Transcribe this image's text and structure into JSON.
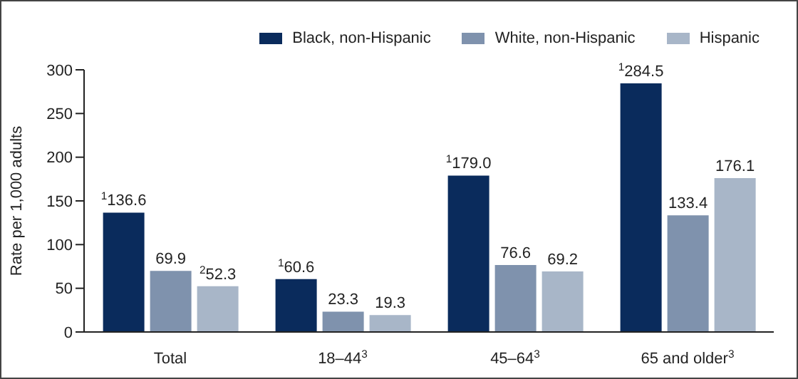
{
  "chart_data": {
    "type": "bar",
    "ylabel": "Rate per 1,000 adults",
    "categories": [
      "Total",
      "18–44$^{3}$",
      "45–64$^{3}$",
      "65 and older$^{3}$"
    ],
    "series": [
      {
        "name": "Black, non-Hispanic",
        "color": "#0a2b5c",
        "values": [
          136.6,
          60.6,
          179.0,
          284.5
        ],
        "value_labels": [
          "$^{1}$136.6",
          "$^{1}$60.6",
          "$^{1}$179.0",
          "$^{1}$284.5"
        ]
      },
      {
        "name": "White, non-Hispanic",
        "color": "#7f92ad",
        "values": [
          69.9,
          23.3,
          76.6,
          133.4
        ],
        "value_labels": [
          "69.9",
          "23.3",
          "76.6",
          "133.4"
        ]
      },
      {
        "name": "Hispanic",
        "color": "#a8b6c8",
        "values": [
          52.3,
          19.3,
          69.2,
          176.1
        ],
        "value_labels": [
          "$^{2}$52.3",
          "19.3",
          "69.2",
          "176.1"
        ]
      }
    ],
    "ylim": [
      0,
      300
    ],
    "yticks": [
      0,
      50,
      100,
      150,
      200,
      250,
      300
    ],
    "legend": "top right"
  }
}
